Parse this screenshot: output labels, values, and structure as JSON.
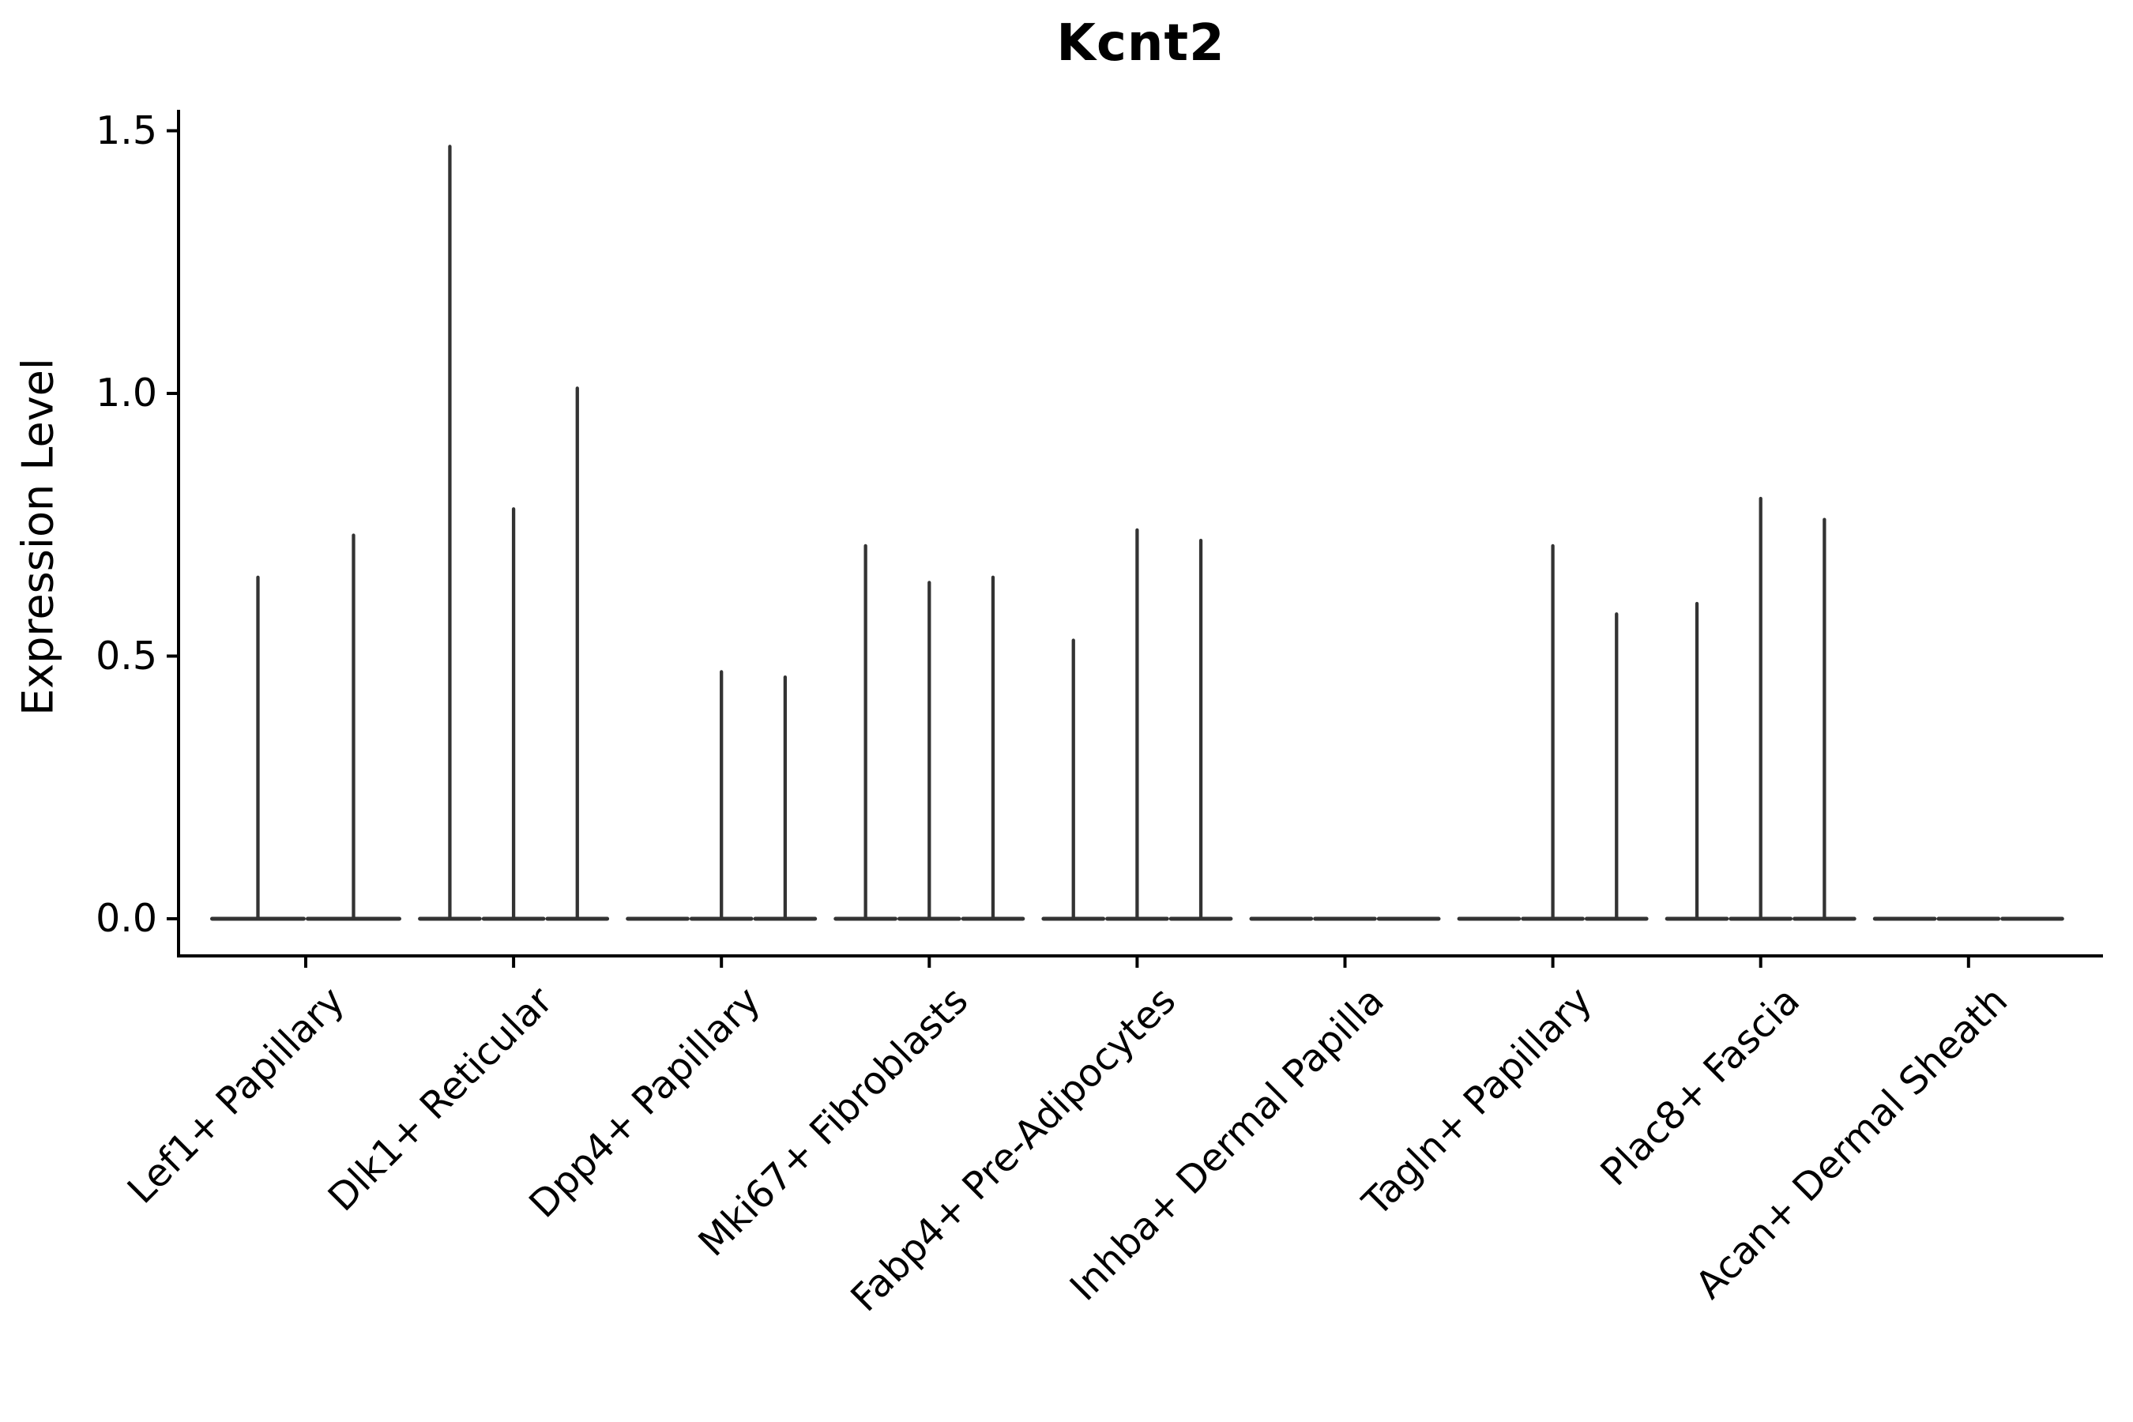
{
  "chart_data": {
    "type": "violin",
    "title": "Kcnt2",
    "xlabel": "",
    "ylabel": "Expression Level",
    "grid": false,
    "legend": "none",
    "ylim": [
      -0.07,
      1.54
    ],
    "yticks": [
      {
        "label": "0.0",
        "value": 0.0
      },
      {
        "label": "0.5",
        "value": 0.5
      },
      {
        "label": "1.0",
        "value": 1.0
      },
      {
        "label": "1.5",
        "value": 1.5
      }
    ],
    "categories": [
      "Lef1+ Papillary",
      "Dlk1+ Reticular",
      "Dpp4+ Papillary",
      "Mki67+ Fibroblasts",
      "Fabp4+ Pre-Adipocytes",
      "Inhba+ Dermal Papilla",
      "Tagln+ Papillary",
      "Plac8+ Fascia",
      "Acan+ Dermal Sheath"
    ],
    "groups": [
      {
        "label": "Lef1+ Papillary",
        "violin_peak_values": [
          0.65,
          0.73
        ]
      },
      {
        "label": "Dlk1+ Reticular",
        "violin_peak_values": [
          1.47,
          0.78,
          1.01
        ]
      },
      {
        "label": "Dpp4+ Papillary",
        "violin_peak_values": [
          0.0,
          0.47,
          0.46
        ]
      },
      {
        "label": "Mki67+ Fibroblasts",
        "violin_peak_values": [
          0.71,
          0.64,
          0.65
        ]
      },
      {
        "label": "Fabp4+ Pre-Adipocytes",
        "violin_peak_values": [
          0.53,
          0.74,
          0.72
        ]
      },
      {
        "label": "Inhba+ Dermal Papilla",
        "violin_peak_values": [
          0.0,
          0.0,
          0.0
        ]
      },
      {
        "label": "Tagln+ Papillary",
        "violin_peak_values": [
          0.0,
          0.71,
          0.58
        ]
      },
      {
        "label": "Plac8+ Fascia",
        "violin_peak_values": [
          0.6,
          0.8,
          0.76
        ]
      },
      {
        "label": "Acan+ Dermal Sheath",
        "violin_peak_values": [
          0.0,
          0.0,
          0.0
        ]
      }
    ],
    "description": "Violin plot of Kcnt2 expression; violins are collapsed to thin spikes (max expression) over flat baselines at 0.",
    "colors": {
      "background": "#ffffff",
      "axis": "#000000",
      "text": "#000000",
      "violin_stroke": "#333333"
    }
  }
}
